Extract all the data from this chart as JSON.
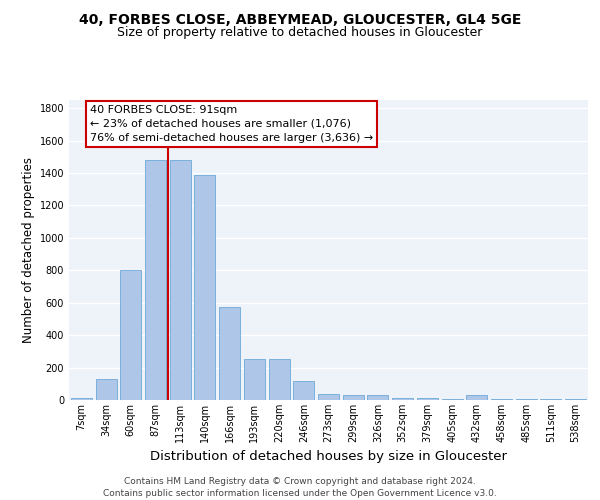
{
  "title_line1": "40, FORBES CLOSE, ABBEYMEAD, GLOUCESTER, GL4 5GE",
  "title_line2": "Size of property relative to detached houses in Gloucester",
  "xlabel": "Distribution of detached houses by size in Gloucester",
  "ylabel": "Number of detached properties",
  "categories": [
    "7sqm",
    "34sqm",
    "60sqm",
    "87sqm",
    "113sqm",
    "140sqm",
    "166sqm",
    "193sqm",
    "220sqm",
    "246sqm",
    "273sqm",
    "299sqm",
    "326sqm",
    "352sqm",
    "379sqm",
    "405sqm",
    "432sqm",
    "458sqm",
    "485sqm",
    "511sqm",
    "538sqm"
  ],
  "values": [
    10,
    130,
    800,
    1480,
    1480,
    1390,
    575,
    250,
    250,
    120,
    35,
    30,
    30,
    15,
    10,
    5,
    30,
    5,
    5,
    5,
    5
  ],
  "bar_color": "#aec6e8",
  "bar_edgecolor": "#5a9fd4",
  "red_line_label": "40 FORBES CLOSE: 91sqm",
  "annotation_line1": "← 23% of detached houses are smaller (1,076)",
  "annotation_line2": "76% of semi-detached houses are larger (3,636) →",
  "annotation_box_color": "#ffffff",
  "annotation_box_edgecolor": "#cc0000",
  "red_line_color": "#cc0000",
  "ylim": [
    0,
    1850
  ],
  "yticks": [
    0,
    200,
    400,
    600,
    800,
    1000,
    1200,
    1400,
    1600,
    1800
  ],
  "background_color": "#eef2f9",
  "grid_color": "#ffffff",
  "footer_line1": "Contains HM Land Registry data © Crown copyright and database right 2024.",
  "footer_line2": "Contains public sector information licensed under the Open Government Licence v3.0.",
  "title_fontsize": 10,
  "subtitle_fontsize": 9,
  "xlabel_fontsize": 9.5,
  "ylabel_fontsize": 8.5,
  "tick_fontsize": 7,
  "footer_fontsize": 6.5,
  "annotation_fontsize": 8
}
